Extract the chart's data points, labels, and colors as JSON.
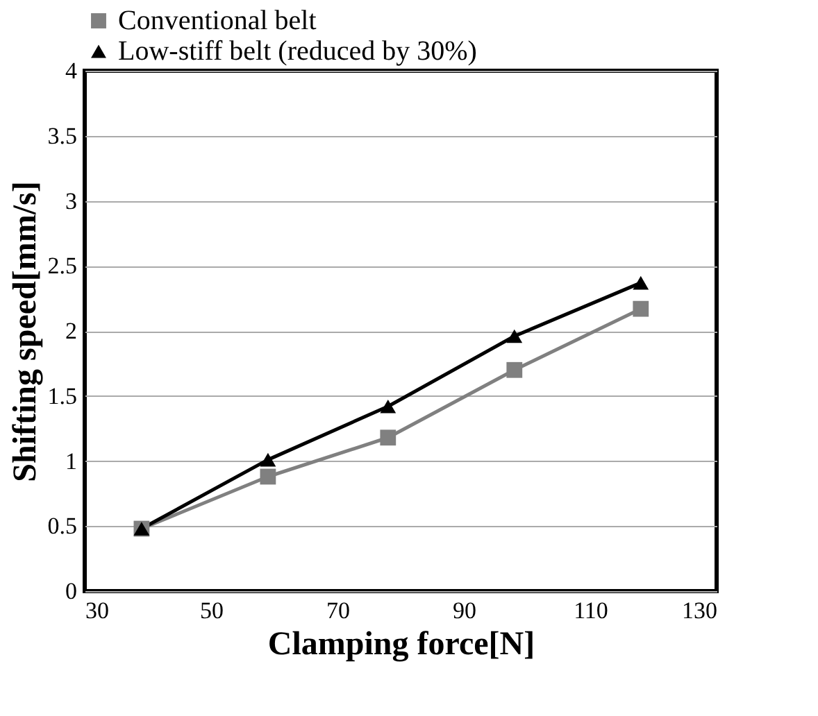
{
  "chart_data": {
    "type": "line",
    "xlabel": "Clamping force[N]",
    "ylabel": "Shifting speed[mm/s]",
    "x": [
      39,
      59,
      78,
      98,
      118
    ],
    "series": [
      {
        "name": "Conventional belt",
        "color": "#808080",
        "marker": "square",
        "values": [
          0.48,
          0.88,
          1.18,
          1.7,
          2.17
        ]
      },
      {
        "name": "Low-stiff belt (reduced by 30%)",
        "color": "#000000",
        "marker": "triangle",
        "values": [
          0.48,
          1.01,
          1.42,
          1.96,
          2.37
        ]
      }
    ],
    "xlim": [
      30,
      130
    ],
    "xticks": [
      30,
      50,
      70,
      90,
      110,
      130
    ],
    "ylim": [
      0,
      4
    ],
    "yticks": [
      0,
      0.5,
      1,
      1.5,
      2,
      2.5,
      3,
      3.5,
      4
    ],
    "grid": "y",
    "legend": "top left",
    "line_style": "solid"
  }
}
